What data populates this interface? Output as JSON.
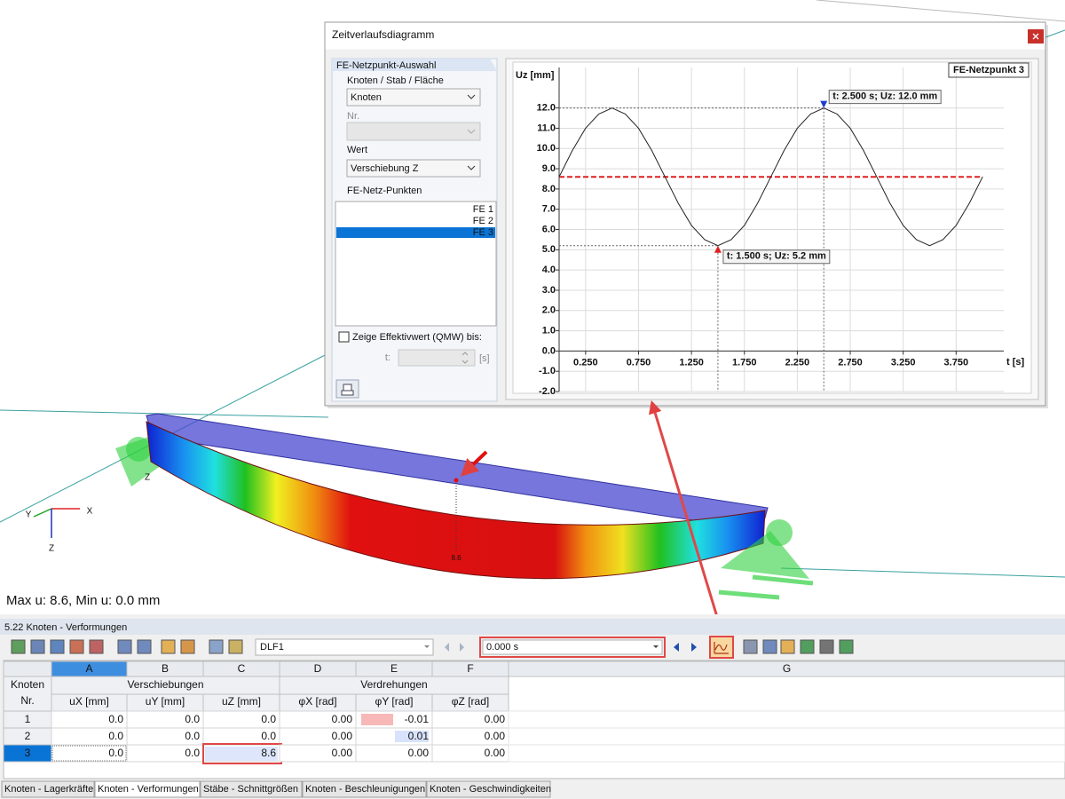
{
  "viewport": {
    "info": "Max u: 8.6, Min u: 0.0 mm",
    "axis_x": "X",
    "axis_y": "Y",
    "axis_z": "Z",
    "support_label": "Z",
    "deformation_label": "8.6"
  },
  "window": {
    "title": "Zeitverlaufsdiagramm"
  },
  "selection": {
    "group_title": "FE-Netzpunkt-Auswahl",
    "object_label": "Knoten / Stab / Fläche",
    "object_value": "Knoten",
    "number_label": "Nr.",
    "value_label": "Wert",
    "value_value": "Verschiebung Z",
    "points_label": "FE-Netz-Punkten",
    "points": [
      "FE 1",
      "FE 2",
      "FE 3"
    ],
    "selected": 2,
    "checkbox_label": "Zeige Effektivwert (QMW) bis:",
    "t_label": "t:",
    "unit_label": "[s]"
  },
  "chart_data": {
    "type": "line",
    "y_label": "Uz [mm]",
    "x_label": "t [s]",
    "x": [
      0,
      0.125,
      0.25,
      0.375,
      0.5,
      0.625,
      0.75,
      0.875,
      1,
      1.125,
      1.25,
      1.375,
      1.5,
      1.625,
      1.75,
      1.875,
      2,
      2.125,
      2.25,
      2.375,
      2.5,
      2.625,
      2.75,
      2.875,
      3,
      3.125,
      3.25,
      3.375,
      3.5,
      3.625,
      3.75,
      3.875,
      4
    ],
    "series": [
      {
        "name": "FE-Netzpunkt 3",
        "color": "#222222",
        "values": [
          8.6,
          9.9,
          11.0,
          11.7,
          12.0,
          11.7,
          11.0,
          9.9,
          8.6,
          7.3,
          6.2,
          5.5,
          5.2,
          5.5,
          6.2,
          7.3,
          8.6,
          9.9,
          11.0,
          11.7,
          12.0,
          11.7,
          11.0,
          9.9,
          8.6,
          7.3,
          6.2,
          5.5,
          5.2,
          5.5,
          6.2,
          7.3,
          8.6
        ]
      }
    ],
    "mean_line": {
      "value": 8.6,
      "color": "#e02020"
    },
    "markers": [
      {
        "x": 2.5,
        "y": 12.0,
        "label": "t: 2.500 s; Uz: 12.0 mm",
        "color": "#1a3ccf"
      },
      {
        "x": 1.5,
        "y": 5.2,
        "label": "t: 1.500 s; Uz: 5.2 mm",
        "color": "#e02020"
      }
    ],
    "xlim": [
      0,
      4.2
    ],
    "ylim": [
      -2,
      14
    ],
    "xticks": [
      {
        "value": 0.25,
        "label": "0.250"
      },
      {
        "value": 0.75,
        "label": "0.750"
      },
      {
        "value": 1.25,
        "label": "1.250"
      },
      {
        "value": 1.75,
        "label": "1.750"
      },
      {
        "value": 2.25,
        "label": "2.250"
      },
      {
        "value": 2.75,
        "label": "2.750"
      },
      {
        "value": 3.25,
        "label": "3.250"
      },
      {
        "value": 3.75,
        "label": "3.750"
      }
    ],
    "yticks": [
      {
        "value": -2,
        "label": "-2.0"
      },
      {
        "value": -1,
        "label": "-1.0"
      },
      {
        "value": 0,
        "label": "0.0"
      },
      {
        "value": 1,
        "label": "1.0"
      },
      {
        "value": 2,
        "label": "2.0"
      },
      {
        "value": 3,
        "label": "3.0"
      },
      {
        "value": 4,
        "label": "4.0"
      },
      {
        "value": 5,
        "label": "5.0"
      },
      {
        "value": 6,
        "label": "6.0"
      },
      {
        "value": 7,
        "label": "7.0"
      },
      {
        "value": 8,
        "label": "8.0"
      },
      {
        "value": 9,
        "label": "9.0"
      },
      {
        "value": 10,
        "label": "10.0"
      },
      {
        "value": 11,
        "label": "11.0"
      },
      {
        "value": 12,
        "label": "12.0"
      }
    ],
    "grid": true
  },
  "table_panel": {
    "title": "5.22 Knoten - Verformungen",
    "load_case": "DLF1",
    "time": "0.000 s",
    "column_letters": [
      "A",
      "B",
      "C",
      "D",
      "E",
      "F",
      "G"
    ],
    "row_header": [
      "Knoten",
      "Nr."
    ],
    "group_headers": [
      "Verschiebungen",
      "Verdrehungen"
    ],
    "sub_headers": [
      "uX [mm]",
      "uY [mm]",
      "uZ [mm]",
      "φX [rad]",
      "φY [rad]",
      "φZ [rad]"
    ],
    "rows": [
      [
        "1",
        "0.0",
        "0.0",
        "0.0",
        "0.00",
        "-0.01",
        "0.00"
      ],
      [
        "2",
        "0.0",
        "0.0",
        "0.0",
        "0.00",
        "0.01",
        "0.00"
      ],
      [
        "3",
        "0.0",
        "0.0",
        "8.6",
        "0.00",
        "0.00",
        "0.00"
      ]
    ],
    "tabs": [
      "Knoten - Lagerkräfte",
      "Knoten - Verformungen",
      "Stäbe - Schnittgrößen",
      "Knoten - Beschleunigungen",
      "Knoten - Geschwindigkeiten"
    ]
  }
}
